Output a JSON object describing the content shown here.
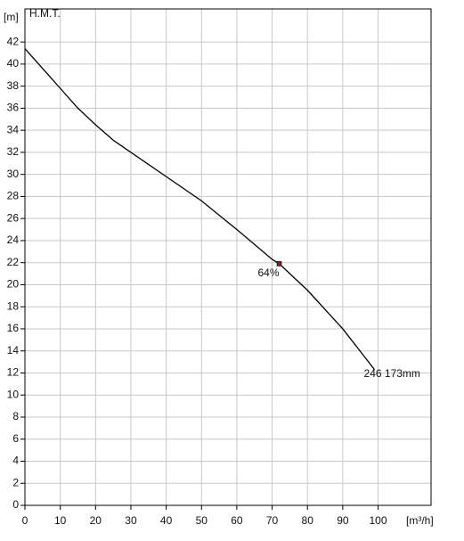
{
  "chart_data": {
    "type": "line",
    "y_label": "[m]",
    "y_title": "H.M.T.",
    "x_label": "[m³/h]",
    "xlim": [
      0,
      115
    ],
    "ylim": [
      0,
      45
    ],
    "xticks": [
      0,
      10,
      20,
      30,
      40,
      50,
      60,
      70,
      80,
      90,
      100
    ],
    "yticks": [
      0,
      2,
      4,
      6,
      8,
      10,
      12,
      14,
      16,
      18,
      20,
      22,
      24,
      26,
      28,
      30,
      32,
      34,
      36,
      38,
      40,
      42
    ],
    "grid": true,
    "series": [
      {
        "name": "246 173mm",
        "color": "#000000",
        "x": [
          0,
          5,
          10,
          15,
          20,
          25,
          30,
          40,
          50,
          60,
          70,
          72,
          80,
          90,
          99
        ],
        "values": [
          41.4,
          39.6,
          37.8,
          36.0,
          34.5,
          33.1,
          32.0,
          29.8,
          27.6,
          25.0,
          22.3,
          21.9,
          19.5,
          16.0,
          12.3
        ]
      }
    ],
    "markers": [
      {
        "x": 72,
        "y": 21.9,
        "label": "64%",
        "color": "#8b1a1a"
      }
    ]
  }
}
